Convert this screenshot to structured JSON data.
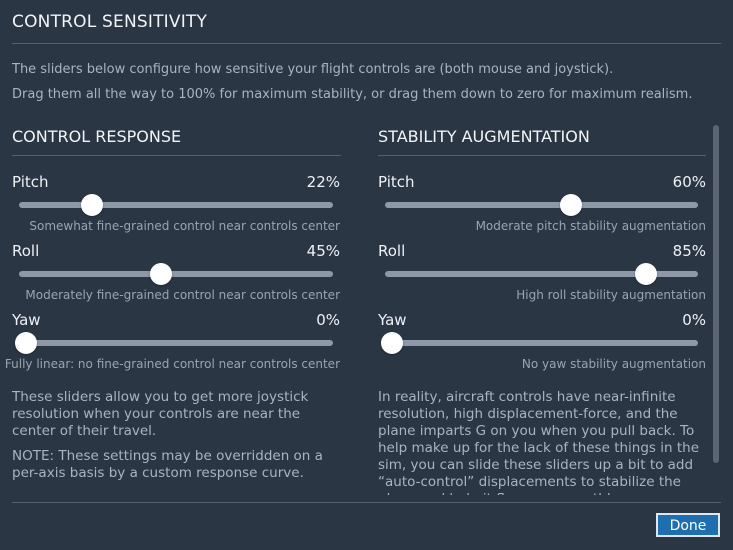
{
  "header": {
    "title": "CONTROL SENSITIVITY",
    "desc_line1": "The sliders below configure how sensitive your flight controls are (both mouse and joystick).",
    "desc_line2": "Drag them all the way to 100% for maximum stability, or drag them down to zero for maximum realism."
  },
  "control_response": {
    "title": "CONTROL RESPONSE",
    "sliders": [
      {
        "label": "Pitch",
        "value": "22%",
        "level": 0.22,
        "hint": "Somewhat fine-grained control near controls center"
      },
      {
        "label": "Roll",
        "value": "45%",
        "level": 0.45,
        "hint": "Moderately fine-grained control near controls center"
      },
      {
        "label": "Yaw",
        "value": "0%",
        "level": 0.0,
        "hint": "Fully linear: no fine-grained control near controls center"
      }
    ],
    "paragraph1": "These sliders allow you to get more joystick resolution when your controls are near the center of their travel.",
    "paragraph2": "NOTE: These settings may be overridden on a per-axis basis by a custom response curve."
  },
  "stability_augmentation": {
    "title": "STABILITY AUGMENTATION",
    "sliders": [
      {
        "label": "Pitch",
        "value": "60%",
        "level": 0.6,
        "hint": "Moderate pitch stability augmentation"
      },
      {
        "label": "Roll",
        "value": "85%",
        "level": 0.85,
        "hint": "High roll stability augmentation"
      },
      {
        "label": "Yaw",
        "value": "0%",
        "level": 0.0,
        "hint": "No yaw stability augmentation"
      }
    ],
    "paragraph": "In reality, aircraft controls have near-infinite resolution, high displacement-force, and the plane imparts G on you when you pull back. To help make up for the lack of these things in the sim, you can slide these sliders up a bit to add “auto-control” displacements to stabilize the plane and help it fly more smoothly."
  },
  "footer": {
    "done_label": "Done"
  }
}
